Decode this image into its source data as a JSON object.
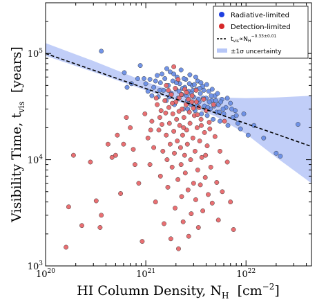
{
  "chart_data": {
    "type": "scatter",
    "xlabel": "HI Column Density, N",
    "xlabel_sub": "H",
    "xlabel_unit": "[cm",
    "xlabel_unit_sup": "−2",
    "xlabel_unit_close": "]",
    "ylabel": "Visibility Time, t",
    "ylabel_sub": "vis",
    "ylabel_unit": "[years]",
    "x_scale": "log",
    "y_scale": "log",
    "xlim": [
      1e+20,
      4.5e+22
    ],
    "ylim": [
      1000,
      300000
    ],
    "x_ticks": [
      {
        "value": 1e+20,
        "base": "10",
        "exp": "20"
      },
      {
        "value": 1e+21,
        "base": "10",
        "exp": "21"
      },
      {
        "value": 1e+22,
        "base": "10",
        "exp": "22"
      }
    ],
    "y_ticks": [
      {
        "value": 1000,
        "base": "10",
        "exp": "3"
      },
      {
        "value": 10000,
        "base": "10",
        "exp": "4"
      },
      {
        "value": 100000,
        "base": "10",
        "exp": "5"
      }
    ],
    "grid": false,
    "legend_position": "top-right",
    "legend": {
      "radiative": "Radiative-limited",
      "detection": "Detection-limited",
      "fit_prefix": "t",
      "fit_sub1": "vis",
      "fit_mid": "∝N",
      "fit_sub2": "H",
      "fit_sup": "−0.33±0.01",
      "band": "±1σ uncertainty"
    },
    "colors": {
      "radiative": "#6b8fe6",
      "detection": "#e8686b",
      "legend_radiative": "#1f3fe0",
      "legend_detection": "#d62728",
      "fit_line": "#000000",
      "band": "#b6c6f7"
    },
    "fit": {
      "amplitude": 100000,
      "pivot": 1e+20,
      "slope": -0.33
    },
    "band": {
      "x": [
        1e+20,
        3e+20,
        1e+21,
        2e+21,
        3e+21,
        5e+21,
        1e+22,
        2e+22,
        4.5e+22
      ],
      "lower": [
        95000,
        67000,
        45000,
        36000,
        31000,
        25500,
        17500,
        10500,
        6000
      ],
      "upper": [
        125000,
        85000,
        54000,
        43500,
        40000,
        38500,
        38000,
        38500,
        40000
      ]
    },
    "series": [
      {
        "name": "Radiative-limited",
        "points": [
          [
            3.6e+20,
            105000
          ],
          [
            6.1e+20,
            66000
          ],
          [
            7.2e+20,
            52000
          ],
          [
            6.5e+20,
            48000
          ],
          [
            8.3e+20,
            58000
          ],
          [
            8.8e+20,
            77000
          ],
          [
            9.6e+20,
            58000
          ],
          [
            1e+21,
            52000
          ],
          [
            1.05e+21,
            44000
          ],
          [
            1.1e+21,
            57000
          ],
          [
            1.2e+21,
            48000
          ],
          [
            1.3e+21,
            62000
          ],
          [
            1.33e+21,
            39000
          ],
          [
            1.4e+21,
            53000
          ],
          [
            1.5e+21,
            45000
          ],
          [
            1.55e+21,
            58000
          ],
          [
            1.6e+21,
            36000
          ],
          [
            1.68e+21,
            50000
          ],
          [
            1.75e+21,
            67000
          ],
          [
            1.8e+21,
            42000
          ],
          [
            1.86e+21,
            55000
          ],
          [
            1.93e+21,
            33000
          ],
          [
            2e+21,
            46000
          ],
          [
            2.05e+21,
            60000
          ],
          [
            2.1e+21,
            38000
          ],
          [
            2.18e+21,
            52000
          ],
          [
            2.25e+21,
            70000
          ],
          [
            2.3e+21,
            41000
          ],
          [
            2.38e+21,
            30000
          ],
          [
            2.45e+21,
            48000
          ],
          [
            2.5e+21,
            57000
          ],
          [
            2.6e+21,
            36000
          ],
          [
            2.68e+21,
            44000
          ],
          [
            2.75e+21,
            63000
          ],
          [
            2.82e+21,
            33000
          ],
          [
            2.9e+21,
            50000
          ],
          [
            3e+21,
            39000
          ],
          [
            3.1e+21,
            29000
          ],
          [
            3.2e+21,
            46000
          ],
          [
            3.3e+21,
            55000
          ],
          [
            3.4e+21,
            35000
          ],
          [
            3.5e+21,
            42000
          ],
          [
            3.6e+21,
            27000
          ],
          [
            3.7e+21,
            49000
          ],
          [
            3.85e+21,
            32000
          ],
          [
            4e+21,
            38000
          ],
          [
            4.1e+21,
            26000
          ],
          [
            4.25e+21,
            44000
          ],
          [
            4.4e+21,
            30000
          ],
          [
            4.55e+21,
            36000
          ],
          [
            4.7e+21,
            24000
          ],
          [
            4.9e+21,
            40000
          ],
          [
            5.1e+21,
            28000
          ],
          [
            5.3e+21,
            33000
          ],
          [
            5.5e+21,
            23000
          ],
          [
            5.75e+21,
            37000
          ],
          [
            6e+21,
            27000
          ],
          [
            6.3e+21,
            31000
          ],
          [
            6.6e+21,
            21000
          ],
          [
            7e+21,
            34000
          ],
          [
            7.4e+21,
            25000
          ],
          [
            7.8e+21,
            29000
          ],
          [
            8.3e+21,
            22000
          ],
          [
            8.8e+21,
            19500
          ],
          [
            9.5e+21,
            27000
          ],
          [
            1.05e+22,
            17000
          ],
          [
            1.2e+22,
            21000
          ],
          [
            1.5e+22,
            16000
          ],
          [
            2e+22,
            11500
          ],
          [
            2.2e+22,
            10800
          ],
          [
            3.3e+22,
            21500
          ],
          [
            1.45e+21,
            64000
          ],
          [
            1.62e+21,
            72000
          ],
          [
            1.9e+21,
            64000
          ],
          [
            2.15e+21,
            44000
          ],
          [
            2.4e+21,
            58000
          ],
          [
            2.55e+21,
            40000
          ],
          [
            2.72e+21,
            52000
          ],
          [
            2.95e+21,
            45000
          ],
          [
            3.15e+21,
            60000
          ],
          [
            3.35e+21,
            37000
          ],
          [
            3.55e+21,
            53000
          ],
          [
            3.8e+21,
            45000
          ],
          [
            4.05e+21,
            51000
          ],
          [
            4.3e+21,
            35000
          ],
          [
            4.6e+21,
            46000
          ],
          [
            4.8e+21,
            32000
          ],
          [
            5.2e+21,
            42000
          ],
          [
            5.6e+21,
            35000
          ],
          [
            5.9e+21,
            30000
          ],
          [
            6.5e+21,
            38000
          ],
          [
            7.2e+21,
            30000
          ],
          [
            8e+21,
            26000
          ],
          [
            1.15e+21,
            40000
          ],
          [
            1.25e+21,
            55000
          ],
          [
            1.38e+21,
            45000
          ],
          [
            1.72e+21,
            39000
          ],
          [
            2.02e+21,
            53000
          ],
          [
            2.33e+21,
            47000
          ],
          [
            2.62e+21,
            30000
          ],
          [
            2.85e+21,
            42000
          ],
          [
            3.05e+21,
            51000
          ],
          [
            3.25e+21,
            32000
          ],
          [
            3.45e+21,
            47000
          ],
          [
            3.75e+21,
            38000
          ],
          [
            4.15e+21,
            31000
          ],
          [
            4.5e+21,
            40000
          ],
          [
            5e+21,
            36000
          ],
          [
            5.4e+21,
            28000
          ]
        ]
      },
      {
        "name": "Detection-limited",
        "points": [
          [
            1.6e+20,
            1500
          ],
          [
            1.7e+20,
            3600
          ],
          [
            1.9e+20,
            11000
          ],
          [
            2.3e+20,
            2400
          ],
          [
            2.8e+20,
            9500
          ],
          [
            3.2e+20,
            4100
          ],
          [
            3.5e+20,
            2300
          ],
          [
            3.6e+20,
            3000
          ],
          [
            4.2e+20,
            14000
          ],
          [
            4.6e+20,
            10500
          ],
          [
            5e+20,
            11000
          ],
          [
            5.2e+20,
            17000
          ],
          [
            5.6e+20,
            4800
          ],
          [
            6e+20,
            14000
          ],
          [
            6.4e+20,
            25000
          ],
          [
            7e+20,
            20000
          ],
          [
            7.5e+20,
            12500
          ],
          [
            7.8e+20,
            9000
          ],
          [
            8.5e+20,
            6000
          ],
          [
            9.2e+20,
            1700
          ],
          [
            9.8e+20,
            27000
          ],
          [
            1.05e+21,
            16000
          ],
          [
            1.1e+21,
            9000
          ],
          [
            1.15e+21,
            23000
          ],
          [
            1.2e+21,
            13000
          ],
          [
            1.25e+21,
            4000
          ],
          [
            1.3e+21,
            33000
          ],
          [
            1.35e+21,
            19000
          ],
          [
            1.4e+21,
            7000
          ],
          [
            1.42e+21,
            29000
          ],
          [
            1.48e+21,
            12000
          ],
          [
            1.52e+21,
            2500
          ],
          [
            1.55e+21,
            36000
          ],
          [
            1.6e+21,
            17000
          ],
          [
            1.63e+21,
            10000
          ],
          [
            1.66e+21,
            5500
          ],
          [
            1.7e+21,
            31000
          ],
          [
            1.72e+21,
            22000
          ],
          [
            1.75e+21,
            14000
          ],
          [
            1.78e+21,
            1800
          ],
          [
            1.8e+21,
            41000
          ],
          [
            1.83e+21,
            8500
          ],
          [
            1.86e+21,
            27000
          ],
          [
            1.9e+21,
            18500
          ],
          [
            1.93e+21,
            11500
          ],
          [
            1.96e+21,
            3500
          ],
          [
            2e+21,
            35000
          ],
          [
            2.03e+21,
            24000
          ],
          [
            2.06e+21,
            15000
          ],
          [
            2.09e+21,
            6500
          ],
          [
            2.12e+21,
            1450
          ],
          [
            2.15e+21,
            38000
          ],
          [
            2.18e+21,
            21000
          ],
          [
            2.22e+21,
            13000
          ],
          [
            2.25e+21,
            9000
          ],
          [
            2.28e+21,
            4500
          ],
          [
            2.3e+21,
            30000
          ],
          [
            2.33e+21,
            17000
          ],
          [
            2.36e+21,
            2600
          ],
          [
            2.4e+21,
            25000
          ],
          [
            2.44e+21,
            11000
          ],
          [
            2.48e+21,
            7500
          ],
          [
            2.52e+21,
            33000
          ],
          [
            2.56e+21,
            19000
          ],
          [
            2.6e+21,
            14000
          ],
          [
            2.64e+21,
            5200
          ],
          [
            2.68e+21,
            1900
          ],
          [
            2.72e+21,
            28000
          ],
          [
            2.76e+21,
            22000
          ],
          [
            2.8e+21,
            10000
          ],
          [
            2.84e+21,
            3100
          ],
          [
            2.9e+21,
            40000
          ],
          [
            2.95e+21,
            16000
          ],
          [
            3e+21,
            6000
          ],
          [
            3.05e+21,
            26000
          ],
          [
            3.1e+21,
            12000
          ],
          [
            3.15e+21,
            4200
          ],
          [
            3.2e+21,
            35000
          ],
          [
            3.25e+21,
            20000
          ],
          [
            3.3e+21,
            8000
          ],
          [
            3.35e+21,
            2300
          ],
          [
            3.4e+21,
            31000
          ],
          [
            3.45e+21,
            15000
          ],
          [
            3.5e+21,
            5800
          ],
          [
            3.56e+21,
            24000
          ],
          [
            3.62e+21,
            10500
          ],
          [
            3.7e+21,
            3300
          ],
          [
            3.78e+21,
            37000
          ],
          [
            3.85e+21,
            18000
          ],
          [
            3.92e+21,
            6800
          ],
          [
            4e+21,
            29000
          ],
          [
            4.1e+21,
            13500
          ],
          [
            4.2e+21,
            4700
          ],
          [
            4.3e+21,
            22500
          ],
          [
            4.45e+21,
            8500
          ],
          [
            4.6e+21,
            3900
          ],
          [
            4.75e+21,
            33000
          ],
          [
            4.9e+21,
            16500
          ],
          [
            5.1e+21,
            6100
          ],
          [
            5.3e+21,
            2700
          ],
          [
            5.5e+21,
            12000
          ],
          [
            5.8e+21,
            5000
          ],
          [
            6.1e+21,
            23000
          ],
          [
            6.5e+21,
            9500
          ],
          [
            7e+21,
            4000
          ],
          [
            7.5e+21,
            2200
          ],
          [
            1.9e+21,
            75000
          ],
          [
            1.6e+21,
            50000
          ],
          [
            2.1e+21,
            57000
          ],
          [
            2.45e+21,
            46000
          ],
          [
            1.38e+21,
            25000
          ],
          [
            1.12e+21,
            19000
          ],
          [
            1.68e+21,
            45000
          ],
          [
            1.97e+21,
            47000
          ],
          [
            2.26e+21,
            41000
          ],
          [
            2.55e+21,
            43000
          ],
          [
            2.88e+21,
            35000
          ],
          [
            3.18e+21,
            45000
          ],
          [
            1.27e+21,
            38000
          ],
          [
            1.45e+21,
            21500
          ],
          [
            1.58e+21,
            27500
          ],
          [
            1.84e+21,
            34000
          ],
          [
            2.14e+21,
            28500
          ],
          [
            2.38e+21,
            20000
          ],
          [
            2.66e+21,
            37000
          ],
          [
            2.98e+21,
            30500
          ],
          [
            3.28e+21,
            26500
          ],
          [
            3.58e+21,
            21000
          ],
          [
            3.95e+21,
            11000
          ],
          [
            4.35e+21,
            19500
          ]
        ]
      }
    ]
  }
}
